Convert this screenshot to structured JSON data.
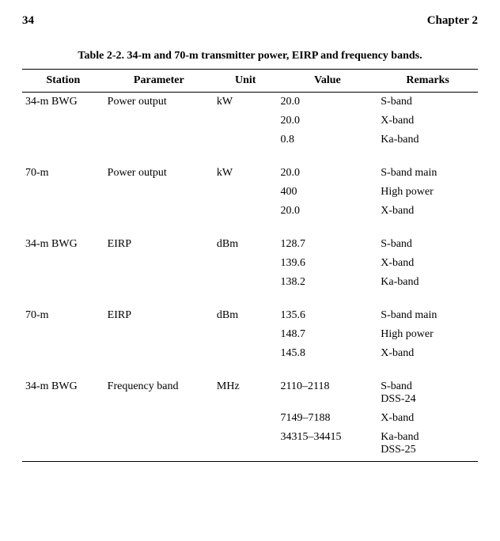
{
  "header": {
    "page_number": "34",
    "chapter_label": "Chapter 2"
  },
  "table": {
    "caption": "Table 2-2. 34-m and 70-m transmitter power, EIRP and frequency bands.",
    "columns": [
      "Station",
      "Parameter",
      "Unit",
      "Value",
      "Remarks"
    ],
    "groups": [
      {
        "station": "34-m BWG",
        "parameter": "Power output",
        "unit": "kW",
        "rows": [
          {
            "value": "20.0",
            "remarks": "S-band"
          },
          {
            "value": "20.0",
            "remarks": "X-band"
          },
          {
            "value": "0.8",
            "remarks": "Ka-band"
          }
        ]
      },
      {
        "station": "70-m",
        "parameter": "Power output",
        "unit": "kW",
        "rows": [
          {
            "value": "20.0",
            "remarks": "S-band main"
          },
          {
            "value": "400",
            "remarks": "High power"
          },
          {
            "value": "20.0",
            "remarks": "X-band"
          }
        ]
      },
      {
        "station": "34-m BWG",
        "parameter": "EIRP",
        "unit": "dBm",
        "rows": [
          {
            "value": "128.7",
            "remarks": "S-band"
          },
          {
            "value": "139.6",
            "remarks": "X-band"
          },
          {
            "value": "138.2",
            "remarks": "Ka-band"
          }
        ]
      },
      {
        "station": "70-m",
        "parameter": "EIRP",
        "unit": "dBm",
        "rows": [
          {
            "value": "135.6",
            "remarks": "S-band main"
          },
          {
            "value": "148.7",
            "remarks": "High power"
          },
          {
            "value": "145.8",
            "remarks": "X-band"
          }
        ]
      },
      {
        "station": "34-m BWG",
        "parameter": "Frequency band",
        "unit": "MHz",
        "rows": [
          {
            "value": "2110–2118",
            "remarks": "S-band\nDSS-24"
          },
          {
            "value": "7149–7188",
            "remarks": "X-band"
          },
          {
            "value": "34315–34415",
            "remarks": "Ka-band\nDSS-25"
          }
        ]
      }
    ]
  }
}
